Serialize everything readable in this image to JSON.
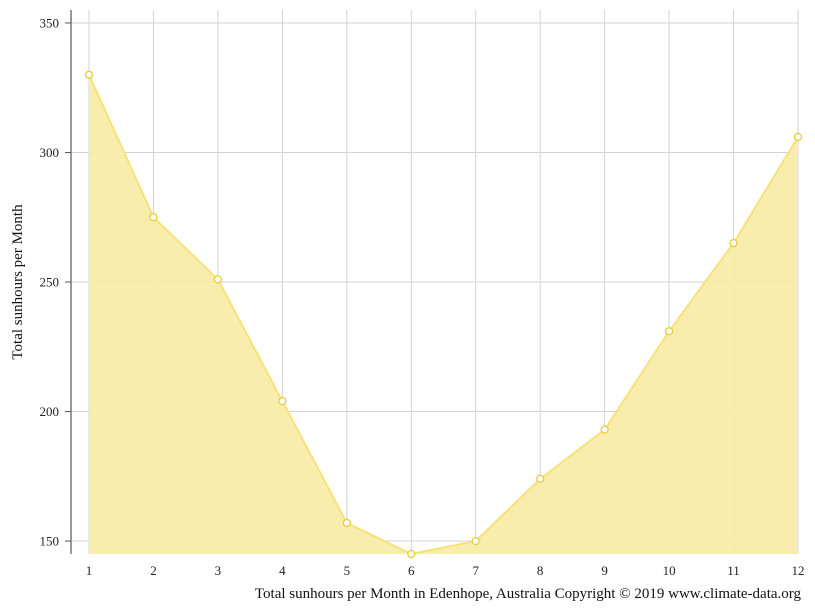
{
  "chart_data": {
    "type": "area",
    "x": [
      1,
      2,
      3,
      4,
      5,
      6,
      7,
      8,
      9,
      10,
      11,
      12
    ],
    "categories": [
      "1",
      "2",
      "3",
      "4",
      "5",
      "6",
      "7",
      "8",
      "9",
      "10",
      "11",
      "12"
    ],
    "series": [
      {
        "values": [
          330,
          275,
          251,
          204,
          157,
          145,
          150,
          174,
          193,
          231,
          265,
          306
        ]
      }
    ],
    "xlabel": "",
    "ylabel": "Total sunhours per Month",
    "ylim": [
      145,
      355
    ],
    "yticks": [
      150,
      200,
      250,
      300,
      350
    ],
    "ytick_labels": [
      "150",
      "200",
      "250",
      "300",
      "350"
    ],
    "grid": true,
    "caption": "Total sunhours per Month in Edenhope, Australia Copyright © 2019 www.climate-data.org",
    "colors": {
      "fill": "#f9eca9",
      "line": "#f7e27a",
      "marker_stroke": "#e8cc3c",
      "marker_fill": "#ffffff",
      "grid": "#d3d3d3",
      "axis": "#555555"
    }
  }
}
